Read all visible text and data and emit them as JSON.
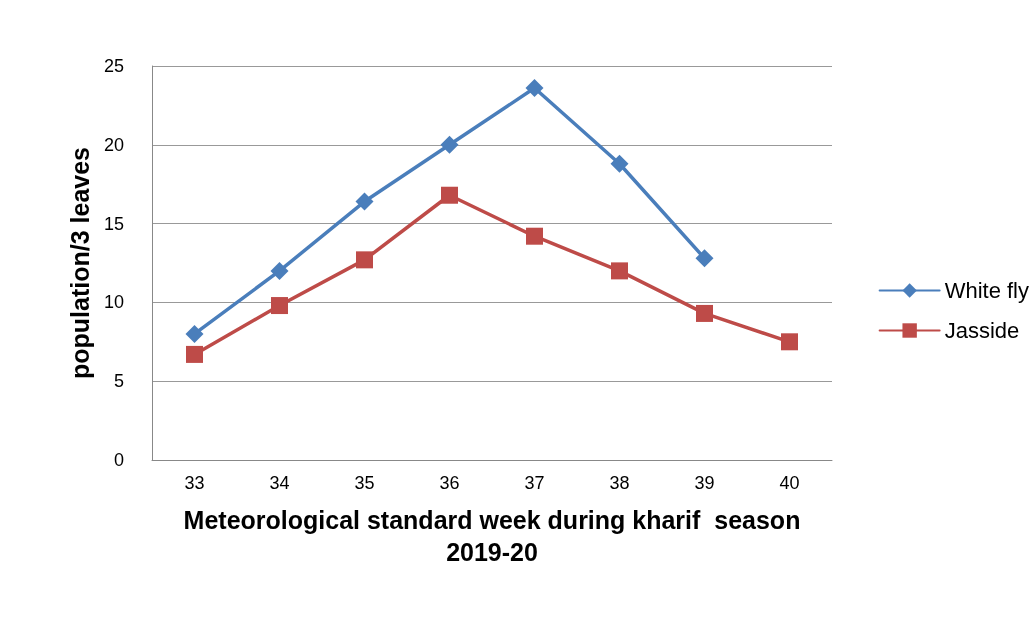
{
  "chart_data": {
    "type": "line",
    "xlabel": "Meteorological standard week during kharif  season\n2019-20",
    "ylabel": "population/3 leaves",
    "categories": [
      "33",
      "34",
      "35",
      "36",
      "37",
      "38",
      "39",
      "40"
    ],
    "series": [
      {
        "name": "White fly",
        "color": "#4a7ebb",
        "marker": "diamond",
        "values": [
          8.0,
          12.0,
          16.4,
          20.0,
          23.6,
          18.8,
          12.8,
          null
        ]
      },
      {
        "name": "Jasside",
        "color": "#be4b48",
        "marker": "square",
        "values": [
          6.7,
          9.8,
          12.7,
          16.8,
          14.2,
          12.0,
          9.3,
          7.5
        ]
      }
    ],
    "ylim": [
      0,
      25
    ],
    "yticks": [
      0,
      5,
      10,
      15,
      20,
      25
    ],
    "grid": "y",
    "legend": "right",
    "line_style": "solid"
  }
}
